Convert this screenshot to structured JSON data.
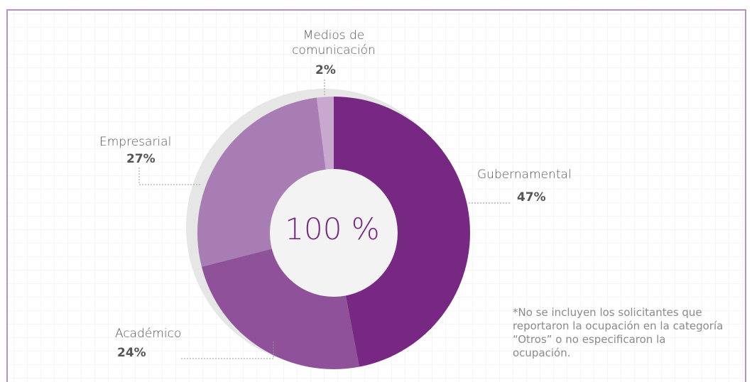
{
  "chart_data": {
    "type": "donut",
    "categories": [
      "Gubernamental",
      "Académico",
      "Empresarial",
      "Medios de comunicación"
    ],
    "values": [
      47,
      24,
      27,
      2
    ],
    "value_labels": [
      "47%",
      "24%",
      "27%",
      "2%"
    ],
    "colors": [
      "#772882",
      "#8e519a",
      "#a87db4",
      "#c9a8d0"
    ],
    "center_label": "100 %",
    "note": "*No se incluyen los solicitantes que reportaron la ocupación en la categoría “Otros” o no especificaron la ocupación."
  }
}
